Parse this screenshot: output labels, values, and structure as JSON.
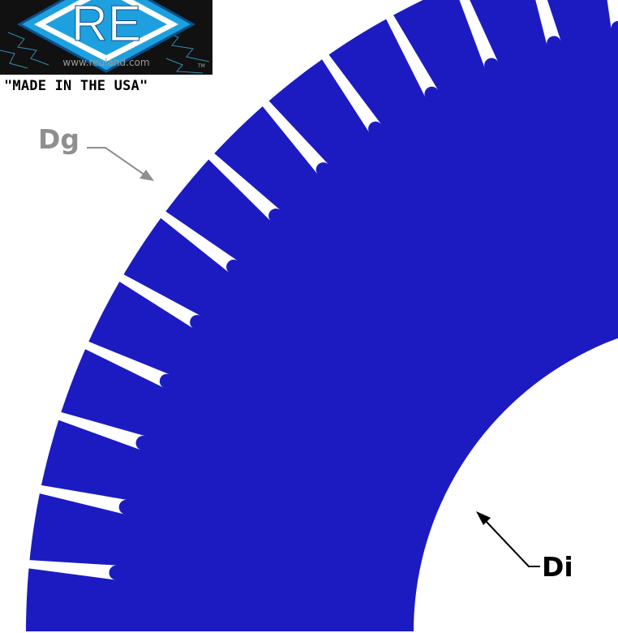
{
  "logo": {
    "letters": "RE",
    "url": "www.reuland.com",
    "tm": "TM",
    "colors": {
      "diamond": "#1ea0df",
      "background": "#111111",
      "lightning": "#3fb6e8"
    }
  },
  "tagline": "\"MADE IN THE USA\"",
  "labels": {
    "dg": "Dg",
    "di": "Di"
  },
  "colors": {
    "lamination": "#1c1bc2",
    "slot": "#ffffff",
    "dg_label": "#8f8f8f",
    "di_label": "#000000"
  }
}
